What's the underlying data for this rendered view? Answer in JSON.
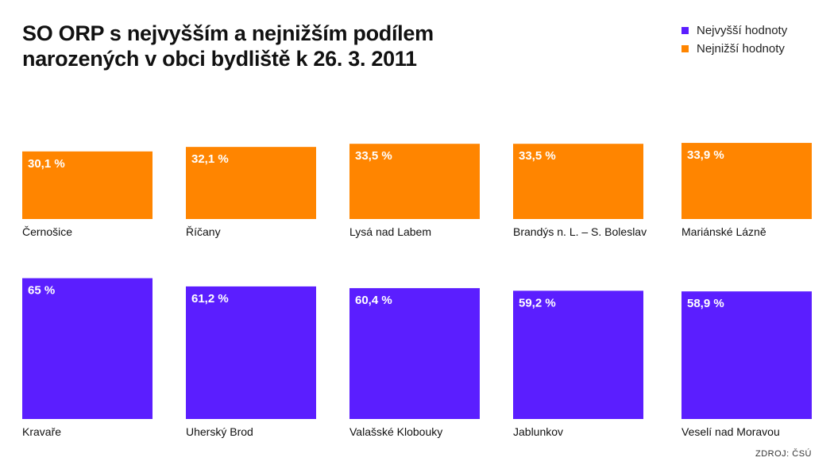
{
  "title": "SO ORP s nejvyšším a nejnižším podílem narozených v obci bydliště k 26. 3. 2011",
  "legend": [
    {
      "label": "Nejvyšší hodnoty",
      "color": "#5B1EFF"
    },
    {
      "label": "Nejnižší hodnoty",
      "color": "#FF8500"
    }
  ],
  "source": "ZDROJ: ČSÚ",
  "chart_data": [
    {
      "type": "bar",
      "series": [
        {
          "name": "Nejnižší hodnoty",
          "color": "#FF8500"
        }
      ],
      "categories": [
        "Černošice",
        "Říčany",
        "Lysá nad Labem",
        "Brandýs n. L. – S. Boleslav",
        "Mariánské Lázně"
      ],
      "values": [
        30.1,
        32.1,
        33.5,
        33.5,
        33.9
      ],
      "labels": [
        "30,1 %",
        "32,1 %",
        "33,5 %",
        "33,5 %",
        "33,9 %"
      ],
      "unit": "%"
    },
    {
      "type": "bar",
      "series": [
        {
          "name": "Nejvyšší hodnoty",
          "color": "#5B1EFF"
        }
      ],
      "categories": [
        "Kravaře",
        "Uherský Brod",
        "Valašské Klobouky",
        "Jablunkov",
        "Veselí nad Moravou"
      ],
      "values": [
        65,
        61.2,
        60.4,
        59.2,
        58.9
      ],
      "labels": [
        "65 %",
        "61,2 %",
        "60,4 %",
        "59,2 %",
        "58,9 %"
      ],
      "unit": "%"
    }
  ]
}
